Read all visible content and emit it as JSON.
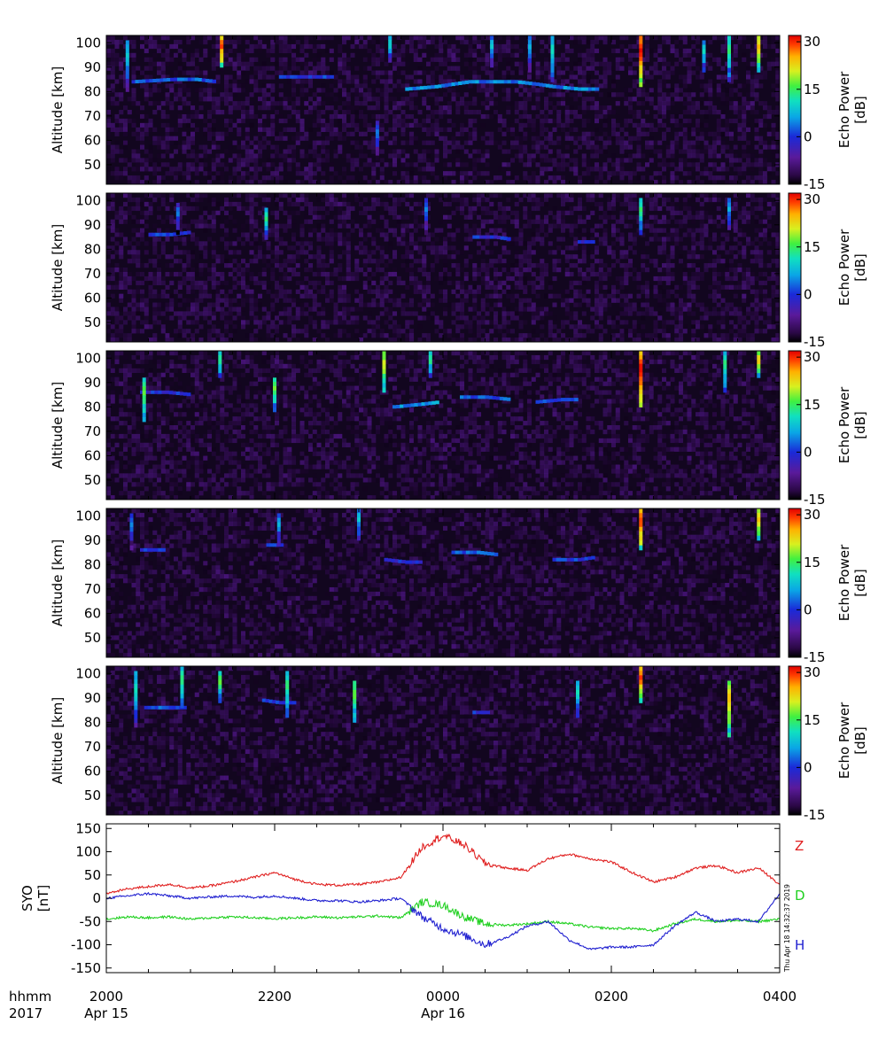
{
  "chart_data": [
    {
      "type": "heatmap",
      "panel": 1,
      "ylabel": "Altitude  [km]",
      "yticks": [
        50,
        60,
        70,
        80,
        90,
        100
      ],
      "ylim": [
        42,
        103
      ],
      "colorbar": {
        "label_line1": "Echo Power",
        "label_line2": "[dB]",
        "ticks": [
          "30",
          "15",
          "0",
          "-15"
        ],
        "range": [
          -15,
          32
        ]
      },
      "echo_layers": [
        {
          "x": [
            20.3,
            20.8,
            21.05,
            21.3
          ],
          "y": [
            84,
            85,
            85,
            84
          ],
          "power_db": 5
        },
        {
          "x": [
            22.05,
            22.4,
            22.7
          ],
          "y": [
            86,
            86,
            86
          ],
          "power_db": 3
        },
        {
          "x": [
            23.55,
            23.9,
            0.3,
            0.85,
            1.1,
            1.3,
            1.6,
            1.85
          ],
          "y": [
            81,
            82,
            84,
            84,
            83,
            82,
            81,
            81
          ],
          "power_db": 7
        }
      ],
      "strong_columns": [
        {
          "x": 20.25,
          "y": [
            80,
            101
          ],
          "peak_db": 10
        },
        {
          "x": 21.37,
          "y": [
            90,
            103
          ],
          "peak_db": 30
        },
        {
          "x": 23.22,
          "y": [
            52,
            68
          ],
          "peak_db": 5
        },
        {
          "x": 23.37,
          "y": [
            92,
            103
          ],
          "peak_db": 12
        },
        {
          "x": 0.58,
          "y": [
            90,
            103
          ],
          "peak_db": 10
        },
        {
          "x": 1.03,
          "y": [
            88,
            103
          ],
          "peak_db": 8
        },
        {
          "x": 1.3,
          "y": [
            84,
            103
          ],
          "peak_db": 12
        },
        {
          "x": 2.35,
          "y": [
            82,
            103
          ],
          "peak_db": 32
        },
        {
          "x": 3.1,
          "y": [
            88,
            101
          ],
          "peak_db": 12
        },
        {
          "x": 3.4,
          "y": [
            84,
            103
          ],
          "peak_db": 15
        },
        {
          "x": 3.75,
          "y": [
            88,
            103
          ],
          "peak_db": 25
        }
      ]
    },
    {
      "type": "heatmap",
      "panel": 2,
      "ylabel": "Altitude  [km]",
      "yticks": [
        50,
        60,
        70,
        80,
        90,
        100
      ],
      "ylim": [
        42,
        103
      ],
      "colorbar": {
        "label_line1": "Echo Power",
        "label_line2": "[dB]",
        "ticks": [
          "30",
          "15",
          "0",
          "-15"
        ],
        "range": [
          -15,
          32
        ]
      },
      "echo_layers": [
        {
          "x": [
            20.5,
            20.75,
            21.0
          ],
          "y": [
            86,
            86,
            87
          ],
          "power_db": 3
        },
        {
          "x": [
            0.35,
            0.6,
            0.8
          ],
          "y": [
            85,
            85,
            84
          ],
          "power_db": 2
        },
        {
          "x": [
            1.6,
            1.8
          ],
          "y": [
            83,
            83
          ],
          "power_db": 2
        }
      ],
      "strong_columns": [
        {
          "x": 20.85,
          "y": [
            86,
            99
          ],
          "peak_db": 5
        },
        {
          "x": 21.9,
          "y": [
            84,
            97
          ],
          "peak_db": 15
        },
        {
          "x": 23.8,
          "y": [
            86,
            101
          ],
          "peak_db": 5
        },
        {
          "x": 2.35,
          "y": [
            86,
            101
          ],
          "peak_db": 15
        },
        {
          "x": 3.4,
          "y": [
            88,
            101
          ],
          "peak_db": 8
        }
      ]
    },
    {
      "type": "heatmap",
      "panel": 3,
      "ylabel": "Altitude  [km]",
      "yticks": [
        50,
        60,
        70,
        80,
        90,
        100
      ],
      "ylim": [
        42,
        103
      ],
      "colorbar": {
        "label_line1": "Echo Power",
        "label_line2": "[dB]",
        "ticks": [
          "30",
          "15",
          "0",
          "-15"
        ],
        "range": [
          -15,
          32
        ]
      },
      "echo_layers": [
        {
          "x": [
            20.4,
            20.7,
            21.0
          ],
          "y": [
            86,
            86,
            85
          ],
          "power_db": 2
        },
        {
          "x": [
            23.4,
            23.7,
            23.95
          ],
          "y": [
            80,
            81,
            82
          ],
          "power_db": 8
        },
        {
          "x": [
            0.2,
            0.5,
            0.8
          ],
          "y": [
            84,
            84,
            83
          ],
          "power_db": 5
        },
        {
          "x": [
            1.1,
            1.4,
            1.6
          ],
          "y": [
            82,
            83,
            83
          ],
          "power_db": 5
        }
      ],
      "strong_columns": [
        {
          "x": 20.45,
          "y": [
            74,
            92
          ],
          "peak_db": 18
        },
        {
          "x": 21.35,
          "y": [
            92,
            103
          ],
          "peak_db": 15
        },
        {
          "x": 22.0,
          "y": [
            78,
            92
          ],
          "peak_db": 18
        },
        {
          "x": 23.3,
          "y": [
            86,
            103
          ],
          "peak_db": 22
        },
        {
          "x": 23.85,
          "y": [
            92,
            103
          ],
          "peak_db": 15
        },
        {
          "x": 2.35,
          "y": [
            80,
            103
          ],
          "peak_db": 32
        },
        {
          "x": 3.35,
          "y": [
            86,
            103
          ],
          "peak_db": 15
        },
        {
          "x": 3.75,
          "y": [
            92,
            103
          ],
          "peak_db": 25
        }
      ]
    },
    {
      "type": "heatmap",
      "panel": 4,
      "ylabel": "Altitude  [km]",
      "yticks": [
        50,
        60,
        70,
        80,
        90,
        100
      ],
      "ylim": [
        42,
        103
      ],
      "colorbar": {
        "label_line1": "Echo Power",
        "label_line2": "[dB]",
        "ticks": [
          "30",
          "15",
          "0",
          "-15"
        ],
        "range": [
          -15,
          32
        ]
      },
      "echo_layers": [
        {
          "x": [
            20.4,
            20.7
          ],
          "y": [
            86,
            86
          ],
          "power_db": 2
        },
        {
          "x": [
            21.9,
            22.1
          ],
          "y": [
            88,
            88
          ],
          "power_db": 3
        },
        {
          "x": [
            23.3,
            23.55,
            23.75
          ],
          "y": [
            82,
            81,
            81
          ],
          "power_db": 3
        },
        {
          "x": [
            0.1,
            0.4,
            0.65
          ],
          "y": [
            85,
            85,
            84
          ],
          "power_db": 5
        },
        {
          "x": [
            1.3,
            1.6,
            1.8
          ],
          "y": [
            82,
            82,
            83
          ],
          "power_db": 3
        }
      ],
      "strong_columns": [
        {
          "x": 20.3,
          "y": [
            86,
            101
          ],
          "peak_db": 5
        },
        {
          "x": 22.05,
          "y": [
            88,
            101
          ],
          "peak_db": 8
        },
        {
          "x": 23.0,
          "y": [
            90,
            103
          ],
          "peak_db": 10
        },
        {
          "x": 2.35,
          "y": [
            86,
            103
          ],
          "peak_db": 30
        },
        {
          "x": 3.75,
          "y": [
            90,
            103
          ],
          "peak_db": 25
        }
      ]
    },
    {
      "type": "heatmap",
      "panel": 5,
      "ylabel": "Altitude  [km]",
      "yticks": [
        50,
        60,
        70,
        80,
        90,
        100
      ],
      "ylim": [
        42,
        103
      ],
      "colorbar": {
        "label_line1": "Echo Power",
        "label_line2": "[dB]",
        "ticks": [
          "30",
          "15",
          "0",
          "-15"
        ],
        "range": [
          -15,
          32
        ]
      },
      "echo_layers": [
        {
          "x": [
            20.45,
            20.7,
            20.95
          ],
          "y": [
            86,
            86,
            86
          ],
          "power_db": 5
        },
        {
          "x": [
            21.85,
            22.05,
            22.25
          ],
          "y": [
            89,
            88,
            88
          ],
          "power_db": 4
        },
        {
          "x": [
            0.35,
            0.55
          ],
          "y": [
            84,
            84
          ],
          "power_db": 3
        }
      ],
      "strong_columns": [
        {
          "x": 20.35,
          "y": [
            78,
            101
          ],
          "peak_db": 12
        },
        {
          "x": 20.9,
          "y": [
            86,
            103
          ],
          "peak_db": 15
        },
        {
          "x": 21.35,
          "y": [
            88,
            101
          ],
          "peak_db": 18
        },
        {
          "x": 22.15,
          "y": [
            82,
            101
          ],
          "peak_db": 15
        },
        {
          "x": 22.95,
          "y": [
            80,
            97
          ],
          "peak_db": 18
        },
        {
          "x": 1.6,
          "y": [
            82,
            97
          ],
          "peak_db": 12
        },
        {
          "x": 2.35,
          "y": [
            88,
            103
          ],
          "peak_db": 30
        },
        {
          "x": 3.4,
          "y": [
            74,
            97
          ],
          "peak_db": 25
        }
      ]
    },
    {
      "type": "line",
      "ylabel_line1": "SYO",
      "ylabel_line2": "[nT]",
      "yticks": [
        150,
        100,
        50,
        0,
        -50,
        -100,
        -150
      ],
      "ylim": [
        -160,
        160
      ],
      "xlim": [
        20.0,
        28.0
      ],
      "series": [
        {
          "name": "Z",
          "color": "#e02020",
          "x": [
            20.0,
            20.25,
            20.5,
            20.75,
            21.0,
            21.25,
            21.5,
            21.75,
            22.0,
            22.25,
            22.5,
            22.75,
            23.0,
            23.25,
            23.5,
            23.75,
            24.0,
            24.25,
            24.5,
            24.75,
            25.0,
            25.25,
            25.5,
            25.75,
            26.0,
            26.25,
            26.5,
            26.75,
            27.0,
            27.25,
            27.5,
            27.75,
            28.0
          ],
          "y": [
            10,
            20,
            25,
            30,
            22,
            27,
            35,
            45,
            55,
            40,
            30,
            28,
            30,
            35,
            45,
            110,
            135,
            115,
            75,
            65,
            60,
            85,
            95,
            85,
            78,
            55,
            35,
            45,
            65,
            70,
            55,
            65,
            30
          ]
        },
        {
          "name": "D",
          "color": "#20d020",
          "x": [
            20.0,
            20.25,
            20.5,
            20.75,
            21.0,
            21.25,
            21.5,
            21.75,
            22.0,
            22.25,
            22.5,
            22.75,
            23.0,
            23.25,
            23.5,
            23.75,
            24.0,
            24.25,
            24.5,
            24.75,
            25.0,
            25.25,
            25.5,
            25.75,
            26.0,
            26.25,
            26.5,
            26.75,
            27.0,
            27.25,
            27.5,
            27.75,
            28.0
          ],
          "y": [
            -45,
            -40,
            -42,
            -40,
            -45,
            -42,
            -40,
            -42,
            -44,
            -42,
            -40,
            -42,
            -40,
            -38,
            -42,
            -8,
            -15,
            -40,
            -55,
            -58,
            -55,
            -50,
            -55,
            -62,
            -65,
            -65,
            -70,
            -55,
            -45,
            -50,
            -48,
            -50,
            -45
          ]
        },
        {
          "name": "H",
          "color": "#2020d0",
          "x": [
            20.0,
            20.25,
            20.5,
            20.75,
            21.0,
            21.25,
            21.5,
            21.75,
            22.0,
            22.25,
            22.5,
            22.75,
            23.0,
            23.25,
            23.5,
            23.75,
            24.0,
            24.25,
            24.5,
            24.75,
            25.0,
            25.25,
            25.5,
            25.75,
            26.0,
            26.25,
            26.5,
            26.75,
            27.0,
            27.25,
            27.5,
            27.75,
            28.0
          ],
          "y": [
            0,
            5,
            10,
            5,
            0,
            3,
            5,
            2,
            5,
            0,
            -5,
            -5,
            -8,
            -5,
            0,
            -40,
            -65,
            -80,
            -100,
            -85,
            -60,
            -50,
            -90,
            -110,
            -105,
            -105,
            -100,
            -60,
            -30,
            -50,
            -45,
            -50,
            10
          ]
        }
      ]
    }
  ],
  "x_axis": {
    "row1_label": "hhmm",
    "row2_label": "2017",
    "xlim": [
      20.0,
      28.0
    ],
    "ticks": [
      {
        "x": 20.0,
        "label": "2000",
        "date": "Apr 15"
      },
      {
        "x": 22.0,
        "label": "2200",
        "date": ""
      },
      {
        "x": 24.0,
        "label": "0000",
        "date": "Apr 16"
      },
      {
        "x": 26.0,
        "label": "0200",
        "date": ""
      },
      {
        "x": 28.0,
        "label": "0400",
        "date": ""
      }
    ]
  },
  "timestamp": "Thu Apr 18 14:32:37 2019",
  "colors": {
    "background_panel": "#12061f",
    "axis": "#000000"
  }
}
